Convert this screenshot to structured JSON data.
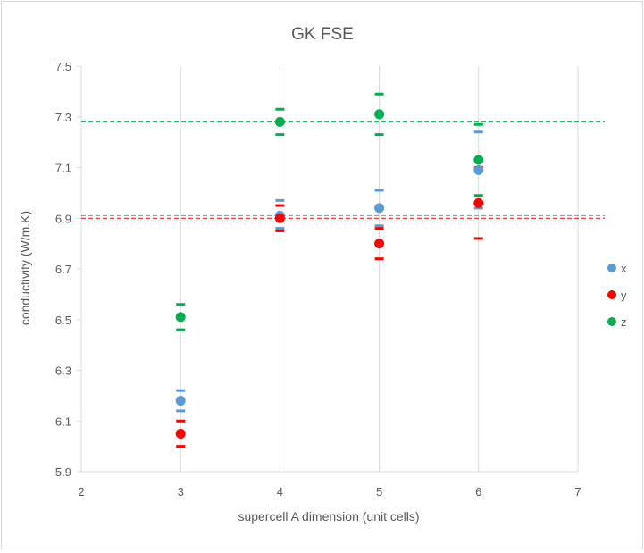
{
  "chart_data": {
    "type": "scatter",
    "title": "GK FSE",
    "xlabel": "supercell A dimension (unit cells)",
    "ylabel": "conductivity (W/m.K)",
    "xlim": [
      2,
      7
    ],
    "ylim": [
      5.9,
      7.5
    ],
    "xticks": [
      "2",
      "3",
      "4",
      "5",
      "6",
      "7"
    ],
    "yticks": [
      "5.9",
      "6.1",
      "6.3",
      "6.5",
      "6.7",
      "6.9",
      "7.1",
      "7.3",
      "7.5"
    ],
    "grid": "vertical",
    "legend_position": "right",
    "series": [
      {
        "name": "x",
        "color": "#5b9bd5",
        "points": [
          {
            "x": 3,
            "y": 6.18,
            "low": 6.14,
            "high": 6.22
          },
          {
            "x": 4,
            "y": 6.91,
            "low": 6.86,
            "high": 6.97
          },
          {
            "x": 5,
            "y": 6.94,
            "low": 6.87,
            "high": 7.01
          },
          {
            "x": 6,
            "y": 7.09,
            "low": 6.94,
            "high": 7.24
          }
        ]
      },
      {
        "name": "y",
        "color": "#ff0000",
        "points": [
          {
            "x": 3,
            "y": 6.05,
            "low": 6.0,
            "high": 6.1
          },
          {
            "x": 4,
            "y": 6.9,
            "low": 6.85,
            "high": 6.95
          },
          {
            "x": 5,
            "y": 6.8,
            "low": 6.74,
            "high": 6.86
          },
          {
            "x": 6,
            "y": 6.96,
            "low": 6.82,
            "high": 7.1
          }
        ]
      },
      {
        "name": "z",
        "color": "#00b050",
        "points": [
          {
            "x": 3,
            "y": 6.51,
            "low": 6.46,
            "high": 6.56
          },
          {
            "x": 4,
            "y": 7.28,
            "low": 7.23,
            "high": 7.33
          },
          {
            "x": 5,
            "y": 7.31,
            "low": 7.23,
            "high": 7.39
          },
          {
            "x": 6,
            "y": 7.13,
            "low": 6.99,
            "high": 7.27
          }
        ]
      }
    ],
    "reference_lines": [
      {
        "y": 6.91,
        "color": "#5b9bd5",
        "style": "dashed"
      },
      {
        "y": 6.9,
        "color": "#ff0000",
        "style": "dashed"
      },
      {
        "y": 7.28,
        "color": "#00b050",
        "style": "dashed"
      }
    ],
    "colors": {
      "text": "#595959",
      "gridline": "#d9d9d9",
      "border": "#d9d9d9"
    }
  }
}
